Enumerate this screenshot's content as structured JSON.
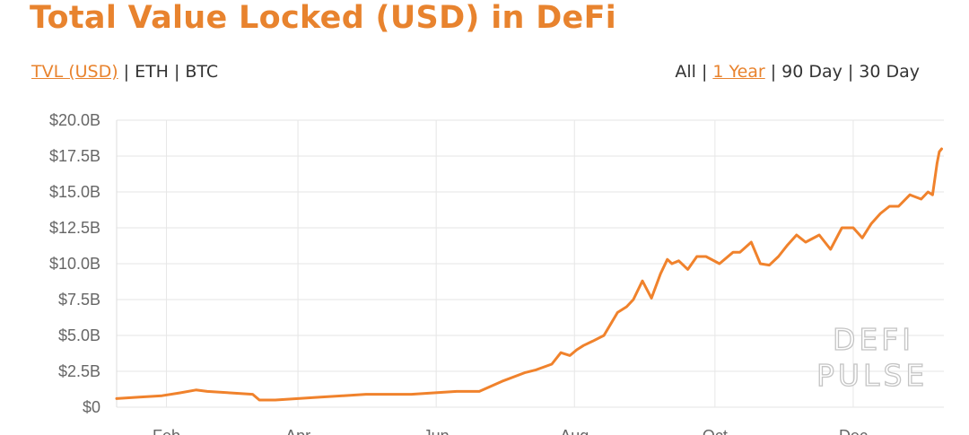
{
  "title": "Total Value Locked (USD) in DeFi",
  "unit_tabs": [
    {
      "label": "TVL (USD)",
      "active": true
    },
    {
      "label": "ETH",
      "active": false
    },
    {
      "label": "BTC",
      "active": false
    }
  ],
  "range_tabs": [
    {
      "label": "All",
      "active": false
    },
    {
      "label": "1 Year",
      "active": true
    },
    {
      "label": "90 Day",
      "active": false
    },
    {
      "label": "30 Day",
      "active": false
    }
  ],
  "separator": "|",
  "watermark": [
    "DEFI",
    "PULSE"
  ],
  "colors": {
    "accent": "#e8832e",
    "line": "#f0822c",
    "grid": "#e6e6e6",
    "text": "#333333",
    "tick": "#666666"
  },
  "chart_data": {
    "type": "line",
    "title": "Total Value Locked (USD) in DeFi",
    "ylabel": "",
    "xlabel": "",
    "ylim": [
      0,
      20
    ],
    "y_unit": "billion USD",
    "yticks": [
      0,
      2.5,
      5,
      7.5,
      10,
      12.5,
      15,
      17.5,
      20
    ],
    "ytick_labels": [
      "$0",
      "$2.5B",
      "$5.0B",
      "$7.5B",
      "$10.0B",
      "$12.5B",
      "$15.0B",
      "$17.5B",
      "$20.0B"
    ],
    "xlim": [
      0,
      365
    ],
    "xticks": [
      {
        "day": 22,
        "label": "Feb"
      },
      {
        "day": 80,
        "label": "Apr"
      },
      {
        "day": 141,
        "label": "Jun"
      },
      {
        "day": 202,
        "label": "Aug"
      },
      {
        "day": 264,
        "label": "Oct"
      },
      {
        "day": 325,
        "label": "Dec"
      }
    ],
    "grid": true,
    "series": [
      {
        "name": "",
        "x": [
          0,
          10,
          20,
          28,
          35,
          40,
          50,
          60,
          63,
          70,
          80,
          90,
          100,
          110,
          120,
          130,
          140,
          150,
          160,
          170,
          180,
          185,
          192,
          196,
          200,
          203,
          206,
          210,
          215,
          218,
          221,
          225,
          228,
          232,
          236,
          240,
          243,
          245,
          248,
          252,
          256,
          260,
          266,
          272,
          275,
          280,
          284,
          288,
          292,
          296,
          300,
          304,
          310,
          315,
          320,
          325,
          329,
          333,
          337,
          341,
          345,
          350,
          355,
          358,
          360,
          362,
          363,
          364
        ],
        "values": [
          0.6,
          0.7,
          0.8,
          1.0,
          1.2,
          1.1,
          1.0,
          0.9,
          0.5,
          0.5,
          0.6,
          0.7,
          0.8,
          0.9,
          0.9,
          0.9,
          1.0,
          1.1,
          1.1,
          1.8,
          2.4,
          2.6,
          3.0,
          3.8,
          3.6,
          4.0,
          4.3,
          4.6,
          5.0,
          5.8,
          6.6,
          7.0,
          7.5,
          8.8,
          7.6,
          9.3,
          10.3,
          10.0,
          10.2,
          9.6,
          10.5,
          10.5,
          10.0,
          10.8,
          10.8,
          11.5,
          10.0,
          9.9,
          10.5,
          11.3,
          12.0,
          11.5,
          12.0,
          11.0,
          12.5,
          12.5,
          11.8,
          12.8,
          13.5,
          14.0,
          14.0,
          14.8,
          14.5,
          15.0,
          14.8,
          17.0,
          17.8,
          18.0
        ]
      }
    ]
  }
}
